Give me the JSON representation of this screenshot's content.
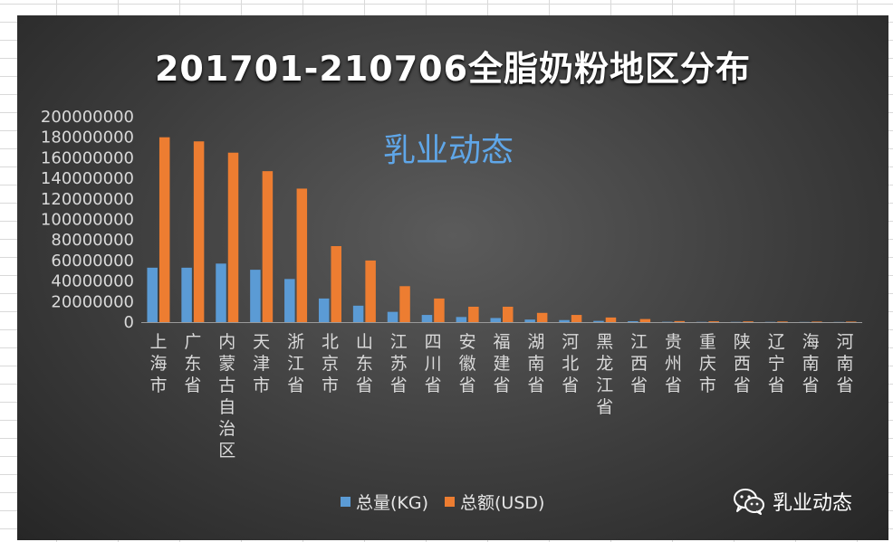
{
  "chart_data": {
    "type": "bar",
    "title": "201701-210706全脂奶粉地区分布",
    "categories": [
      "上海市",
      "广东省",
      "内蒙古自治区",
      "天津市",
      "浙江省",
      "北京市",
      "山东省",
      "江苏省",
      "四川省",
      "安徽省",
      "福建省",
      "湖南省",
      "河北省",
      "黑龙江省",
      "江西省",
      "贵州省",
      "重庆市",
      "陕西省",
      "辽宁省",
      "海南省",
      "河南省"
    ],
    "series": [
      {
        "name": "总量(KG)",
        "color": "#5b9bd5",
        "values": [
          53000000,
          53000000,
          57000000,
          51000000,
          42000000,
          23000000,
          16000000,
          10000000,
          7000000,
          5000000,
          4000000,
          2500000,
          2000000,
          1200000,
          900000,
          300000,
          200000,
          200000,
          200000,
          150000,
          150000
        ]
      },
      {
        "name": "总额(USD)",
        "color": "#ed7d31",
        "values": [
          180000000,
          176000000,
          165000000,
          147000000,
          130000000,
          74000000,
          60000000,
          35000000,
          23000000,
          15000000,
          15000000,
          9000000,
          7000000,
          4500000,
          3000000,
          1000000,
          800000,
          700000,
          600000,
          500000,
          500000
        ]
      }
    ],
    "yticks": [
      "200000000",
      "180000000",
      "160000000",
      "140000000",
      "120000000",
      "100000000",
      "80000000",
      "60000000",
      "40000000",
      "20000000",
      "0"
    ],
    "ylim": [
      0,
      200000000
    ],
    "legend": "bottom",
    "grid": false
  },
  "watermark": {
    "center_text": "乳业动态",
    "corner_text": "乳业动态",
    "corner_icon": "wechat-icon"
  },
  "colors": {
    "background": "#3d3d3d",
    "axis_text": "#d9d9d9",
    "watermark": "#5fa6e8"
  }
}
